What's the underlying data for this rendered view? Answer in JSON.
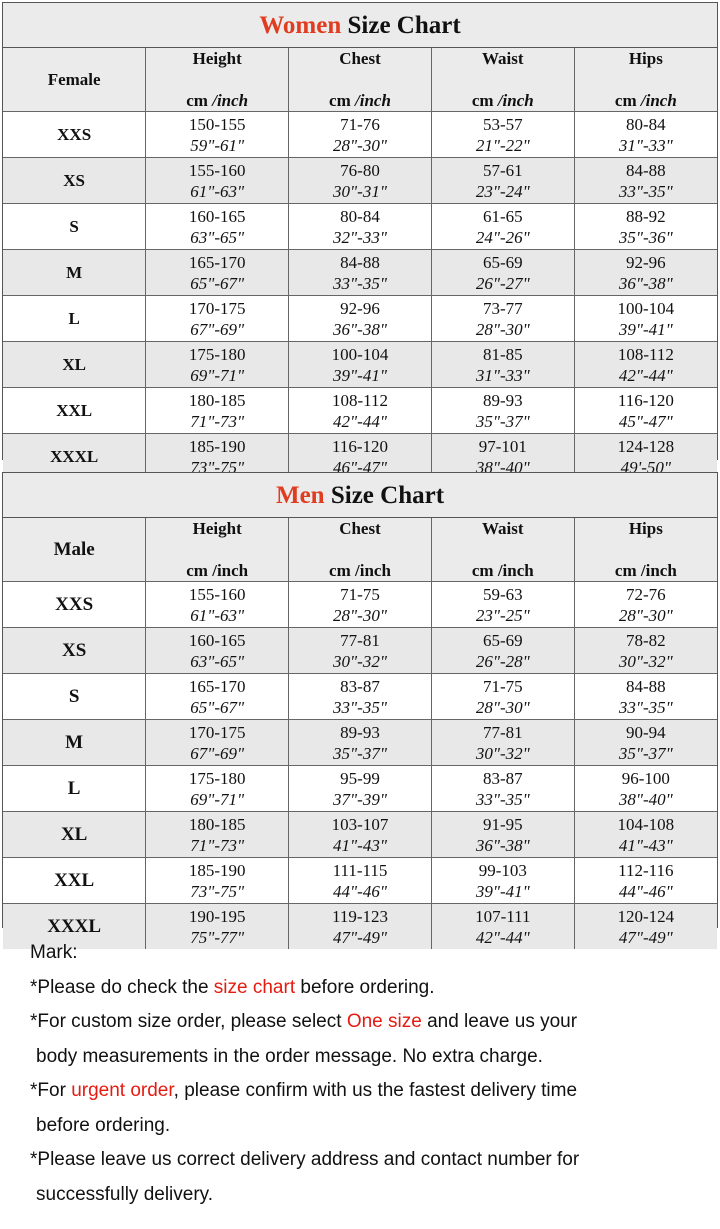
{
  "colors": {
    "accent": "#e03c1f",
    "note_highlight": "#e51b12",
    "row_alt": "#e8e8e8",
    "header_bg": "#ebebeb"
  },
  "women": {
    "title_accent": "Women",
    "title_rest": " Size Chart",
    "first_header": "Female",
    "columns": [
      {
        "name": "Height",
        "unit_cm": "cm ",
        "unit_inch": "/inch"
      },
      {
        "name": "Chest",
        "unit_cm": "cm ",
        "unit_inch": "/inch"
      },
      {
        "name": "Waist",
        "unit_cm": "cm ",
        "unit_inch": "/inch"
      },
      {
        "name": "Hips",
        "unit_cm": "cm ",
        "unit_inch": "/inch"
      }
    ],
    "rows": [
      {
        "size": "XXS",
        "cells": [
          [
            "150-155",
            "59\"-61\""
          ],
          [
            "71-76",
            "28\"-30\""
          ],
          [
            "53-57",
            "21\"-22\""
          ],
          [
            "80-84",
            "31\"-33\""
          ]
        ]
      },
      {
        "size": "XS",
        "cells": [
          [
            "155-160",
            "61\"-63\""
          ],
          [
            "76-80",
            "30\"-31\""
          ],
          [
            "57-61",
            "23\"-24\""
          ],
          [
            "84-88",
            "33\"-35\""
          ]
        ]
      },
      {
        "size": "S",
        "cells": [
          [
            "160-165",
            "63\"-65\""
          ],
          [
            "80-84",
            "32\"-33\""
          ],
          [
            "61-65",
            "24\"-26\""
          ],
          [
            "88-92",
            "35\"-36\""
          ]
        ]
      },
      {
        "size": "M",
        "cells": [
          [
            "165-170",
            "65\"-67\""
          ],
          [
            "84-88",
            "33\"-35\""
          ],
          [
            "65-69",
            "26\"-27\""
          ],
          [
            "92-96",
            "36\"-38\""
          ]
        ]
      },
      {
        "size": "L",
        "cells": [
          [
            "170-175",
            "67\"-69\""
          ],
          [
            "92-96",
            "36\"-38\""
          ],
          [
            "73-77",
            "28\"-30\""
          ],
          [
            "100-104",
            "39\"-41\""
          ]
        ]
      },
      {
        "size": "XL",
        "cells": [
          [
            "175-180",
            "69\"-71\""
          ],
          [
            "100-104",
            "39\"-41\""
          ],
          [
            "81-85",
            "31\"-33\""
          ],
          [
            "108-112",
            "42\"-44\""
          ]
        ]
      },
      {
        "size": "XXL",
        "cells": [
          [
            "180-185",
            "71\"-73\""
          ],
          [
            "108-112",
            "42\"-44\""
          ],
          [
            "89-93",
            "35\"-37\""
          ],
          [
            "116-120",
            "45\"-47\""
          ]
        ]
      },
      {
        "size": "XXXL",
        "cells": [
          [
            "185-190",
            "73\"-75\""
          ],
          [
            "116-120",
            "46\"-47\""
          ],
          [
            "97-101",
            "38\"-40\""
          ],
          [
            "124-128",
            "49'-50\""
          ]
        ]
      }
    ]
  },
  "men": {
    "title_accent": "Men",
    "title_rest": " Size Chart",
    "first_header": "Male",
    "columns": [
      {
        "name": "Height",
        "unit_cm": "cm ",
        "unit_inch": "/inch"
      },
      {
        "name": "Chest",
        "unit_cm": "cm ",
        "unit_inch": "/inch"
      },
      {
        "name": "Waist",
        "unit_cm": "cm ",
        "unit_inch": "/inch"
      },
      {
        "name": "Hips",
        "unit_cm": "cm ",
        "unit_inch": "/inch"
      }
    ],
    "rows": [
      {
        "size": "XXS",
        "cells": [
          [
            "155-160",
            "61\"-63\""
          ],
          [
            "71-75",
            "28\"-30\""
          ],
          [
            "59-63",
            "23\"-25\""
          ],
          [
            "72-76",
            "28\"-30\""
          ]
        ]
      },
      {
        "size": "XS",
        "cells": [
          [
            "160-165",
            "63\"-65\""
          ],
          [
            "77-81",
            "30\"-32\""
          ],
          [
            "65-69",
            "26\"-28\""
          ],
          [
            "78-82",
            "30\"-32\""
          ]
        ]
      },
      {
        "size": "S",
        "cells": [
          [
            "165-170",
            "65\"-67\""
          ],
          [
            "83-87",
            "33\"-35\""
          ],
          [
            "71-75",
            "28\"-30\""
          ],
          [
            "84-88",
            "33\"-35\""
          ]
        ]
      },
      {
        "size": "M",
        "cells": [
          [
            "170-175",
            "67\"-69\""
          ],
          [
            "89-93",
            "35\"-37\""
          ],
          [
            "77-81",
            "30\"-32\""
          ],
          [
            "90-94",
            "35\"-37\""
          ]
        ]
      },
      {
        "size": "L",
        "cells": [
          [
            "175-180",
            "69\"-71\""
          ],
          [
            "95-99",
            "37\"-39\""
          ],
          [
            "83-87",
            "33\"-35\""
          ],
          [
            "96-100",
            "38\"-40\""
          ]
        ]
      },
      {
        "size": "XL",
        "cells": [
          [
            "180-185",
            "71\"-73\""
          ],
          [
            "103-107",
            "41\"-43\""
          ],
          [
            "91-95",
            "36\"-38\""
          ],
          [
            "104-108",
            "41\"-43\""
          ]
        ]
      },
      {
        "size": "XXL",
        "cells": [
          [
            "185-190",
            "73\"-75\""
          ],
          [
            "111-115",
            "44\"-46\""
          ],
          [
            "99-103",
            "39\"-41\""
          ],
          [
            "112-116",
            "44\"-46\""
          ]
        ]
      },
      {
        "size": "XXXL",
        "cells": [
          [
            "190-195",
            "75\"-77\""
          ],
          [
            "119-123",
            "47\"-49\""
          ],
          [
            "107-111",
            "42\"-44\""
          ],
          [
            "120-124",
            "47\"-49\""
          ]
        ]
      }
    ]
  },
  "notes": {
    "heading": "Mark:",
    "lines": [
      {
        "indent": false,
        "parts": [
          {
            "t": "*Please do check the "
          },
          {
            "t": "size chart",
            "red": true
          },
          {
            "t": " before ordering."
          }
        ]
      },
      {
        "indent": false,
        "parts": [
          {
            "t": "*For custom size order, please select "
          },
          {
            "t": "One size",
            "red": true
          },
          {
            "t": " and leave us your"
          }
        ]
      },
      {
        "indent": true,
        "parts": [
          {
            "t": "body measurements in the order message. No extra charge."
          }
        ]
      },
      {
        "indent": false,
        "parts": [
          {
            "t": "*For "
          },
          {
            "t": "urgent order",
            "red": true
          },
          {
            "t": ", please confirm with us the fastest delivery time"
          }
        ]
      },
      {
        "indent": true,
        "parts": [
          {
            "t": "before ordering."
          }
        ]
      },
      {
        "indent": false,
        "parts": [
          {
            "t": "*Please leave us correct delivery address and contact number for"
          }
        ]
      },
      {
        "indent": true,
        "parts": [
          {
            "t": "successfully delivery."
          }
        ]
      }
    ]
  }
}
